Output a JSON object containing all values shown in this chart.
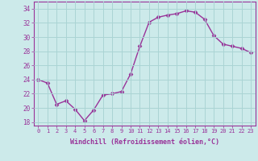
{
  "x": [
    0,
    1,
    2,
    3,
    4,
    5,
    6,
    7,
    8,
    9,
    10,
    11,
    12,
    13,
    14,
    15,
    16,
    17,
    18,
    19,
    20,
    21,
    22,
    23
  ],
  "y": [
    24,
    23.5,
    20.5,
    21,
    19.8,
    18.2,
    19.7,
    21.8,
    22.0,
    22.3,
    24.8,
    28.7,
    32.1,
    32.8,
    33.1,
    33.3,
    33.7,
    33.5,
    32.5,
    30.2,
    29.0,
    28.7,
    28.4,
    27.8
  ],
  "line_color": "#993399",
  "marker": "D",
  "marker_size": 2.5,
  "bg_color": "#cceaea",
  "grid_color": "#aad4d4",
  "xlabel": "Windchill (Refroidissement éolien,°C)",
  "xlabel_color": "#993399",
  "ylabel_ticks": [
    18,
    20,
    22,
    24,
    26,
    28,
    30,
    32,
    34
  ],
  "xtick_labels": [
    "0",
    "1",
    "2",
    "3",
    "4",
    "5",
    "6",
    "7",
    "8",
    "9",
    "10",
    "11",
    "12",
    "13",
    "14",
    "15",
    "16",
    "17",
    "18",
    "19",
    "20",
    "21",
    "22",
    "23"
  ],
  "ylim": [
    17.5,
    35.0
  ],
  "xlim": [
    -0.5,
    23.5
  ],
  "tick_color": "#993399",
  "axis_color": "#993399",
  "linewidth": 1.0
}
